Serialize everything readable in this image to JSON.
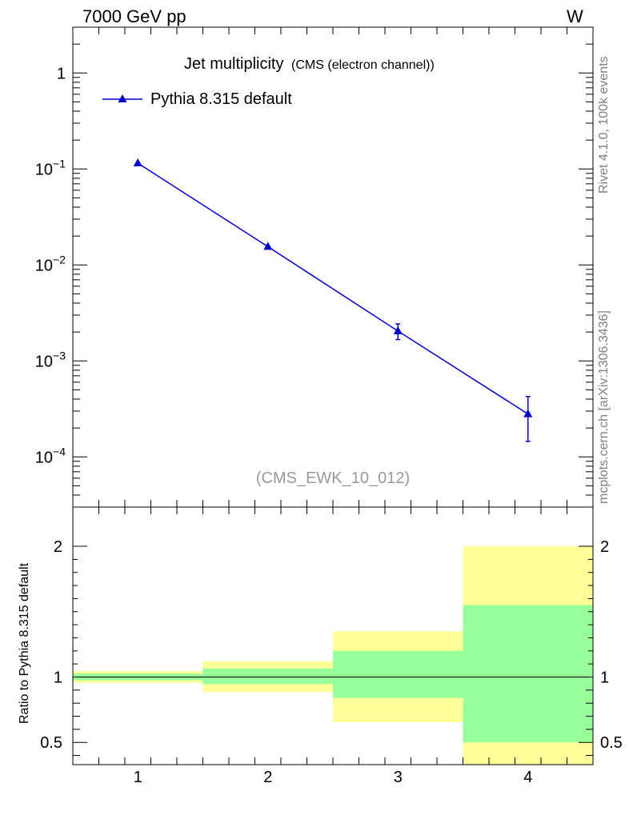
{
  "header": {
    "left": "7000 GeV pp",
    "right": "W"
  },
  "side": {
    "top": "Rivet 4.1.0,  100k events",
    "bottom": "mcplots.cern.ch [arXiv:1306.3436]"
  },
  "chart_data": [
    {
      "type": "scatter",
      "title": "Jet multiplicity",
      "subtitle": "(CMS (electron channel))",
      "analysis_label": "(CMS_EWK_10_012)",
      "xlabel": "",
      "ylabel": "",
      "yscale": "log",
      "xlim": [
        0.5,
        4.5
      ],
      "ylim": [
        3e-05,
        3
      ],
      "y_ticks": [
        {
          "base": "1",
          "exp": ""
        },
        {
          "base": "10",
          "exp": "−1"
        },
        {
          "base": "10",
          "exp": "−2"
        },
        {
          "base": "10",
          "exp": "−3"
        },
        {
          "base": "10",
          "exp": "−4"
        }
      ],
      "legend": {
        "position": "top-left",
        "entries": [
          {
            "name": "Pythia 8.315 default",
            "color": "#0000cc",
            "marker": "triangle"
          }
        ]
      },
      "series": [
        {
          "name": "Pythia 8.315 default",
          "color": "#0000cc",
          "x": [
            1,
            2,
            3,
            4
          ],
          "y": [
            0.115,
            0.0155,
            0.00205,
            0.00028
          ],
          "yerr_low": [
            0.001,
            0.0002,
            0.00038,
            0.000135
          ],
          "yerr_high": [
            0.001,
            0.0002,
            0.00038,
            0.000145
          ]
        }
      ]
    },
    {
      "type": "area",
      "ylabel": "Ratio to Pythia 8.315 default",
      "xlabel": "",
      "xlim": [
        0.5,
        4.5
      ],
      "ylim": [
        0.33,
        2.3
      ],
      "x_ticks": [
        "1",
        "2",
        "3",
        "4"
      ],
      "y_ticks": [
        "0.5",
        "1",
        "2"
      ],
      "reference_line": 1,
      "bands": [
        {
          "x_from": 0.5,
          "x_to": 1.5,
          "green": [
            0.975,
            1.025
          ],
          "yellow": [
            0.955,
            1.045
          ]
        },
        {
          "x_from": 1.5,
          "x_to": 2.5,
          "green": [
            0.945,
            1.065
          ],
          "yellow": [
            0.885,
            1.12
          ]
        },
        {
          "x_from": 2.5,
          "x_to": 3.5,
          "green": [
            0.84,
            1.2
          ],
          "yellow": [
            0.655,
            1.35
          ]
        },
        {
          "x_from": 3.5,
          "x_to": 4.5,
          "green": [
            0.5,
            1.55
          ],
          "yellow": [
            0.3,
            2.0
          ]
        }
      ],
      "band_colors": {
        "green": "#99ff99",
        "yellow": "#ffff99"
      }
    }
  ]
}
